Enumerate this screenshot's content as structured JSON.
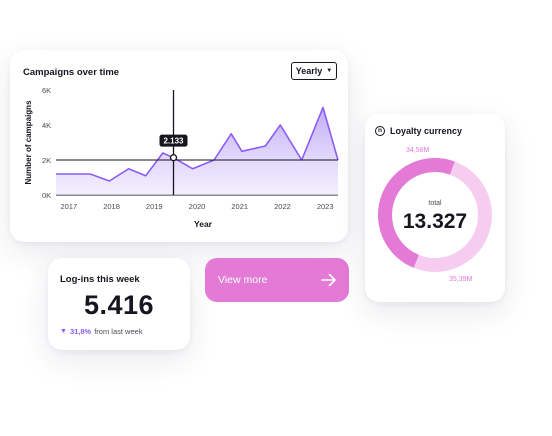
{
  "campaigns": {
    "title": "Campaigns over time",
    "dropdown": {
      "selected": "Yearly",
      "icon": "caret-down-icon"
    },
    "tooltip": {
      "value": "2.133"
    }
  },
  "chart_data": {
    "type": "area",
    "title": "Campaigns over time",
    "xlabel": "Year",
    "ylabel": "Number of campaigns",
    "x_ticks": [
      "2017",
      "2018",
      "2019",
      "2020",
      "2021",
      "2022",
      "2023"
    ],
    "y_ticks": [
      "0K",
      "2K",
      "4K",
      "6K"
    ],
    "ylim": [
      0,
      6000
    ],
    "xlim": [
      2016.7,
      2023.3
    ],
    "grid": false,
    "series": [
      {
        "x": [
          2016.7,
          2017.2,
          2017.5,
          2017.95,
          2018.4,
          2018.8,
          2019.2,
          2019.45,
          2019.9,
          2020.4,
          2020.8,
          2021.05,
          2021.6,
          2021.95,
          2022.45,
          2022.95,
          2023.3
        ],
        "values": [
          1200,
          1200,
          1200,
          800,
          1500,
          1100,
          2400,
          2133,
          1500,
          2000,
          3500,
          2500,
          2800,
          4000,
          2000,
          5000,
          2000
        ]
      }
    ],
    "annotations": [
      {
        "type": "crosshair",
        "x": 2019.45,
        "y": 2133,
        "label": "2.133"
      },
      {
        "type": "reference-line",
        "y": 2000
      }
    ]
  },
  "logins": {
    "title": "Log-ins this week",
    "value": "5.416",
    "change_icon": "triangle-down-icon",
    "change_pct": "31,8%",
    "change_text": "from last week"
  },
  "view_more": {
    "label": "View more",
    "icon": "arrow-right-icon"
  },
  "loyalty": {
    "title": "Loyalty currency",
    "icon": "coin-n-icon",
    "total_label": "total",
    "total_value": "13.327",
    "segments": [
      {
        "label": "34,58M",
        "value": 34.58,
        "color": "#e27ad6"
      },
      {
        "label": "35,39M",
        "value": 35.39,
        "color": "#f6cdf0"
      }
    ]
  }
}
